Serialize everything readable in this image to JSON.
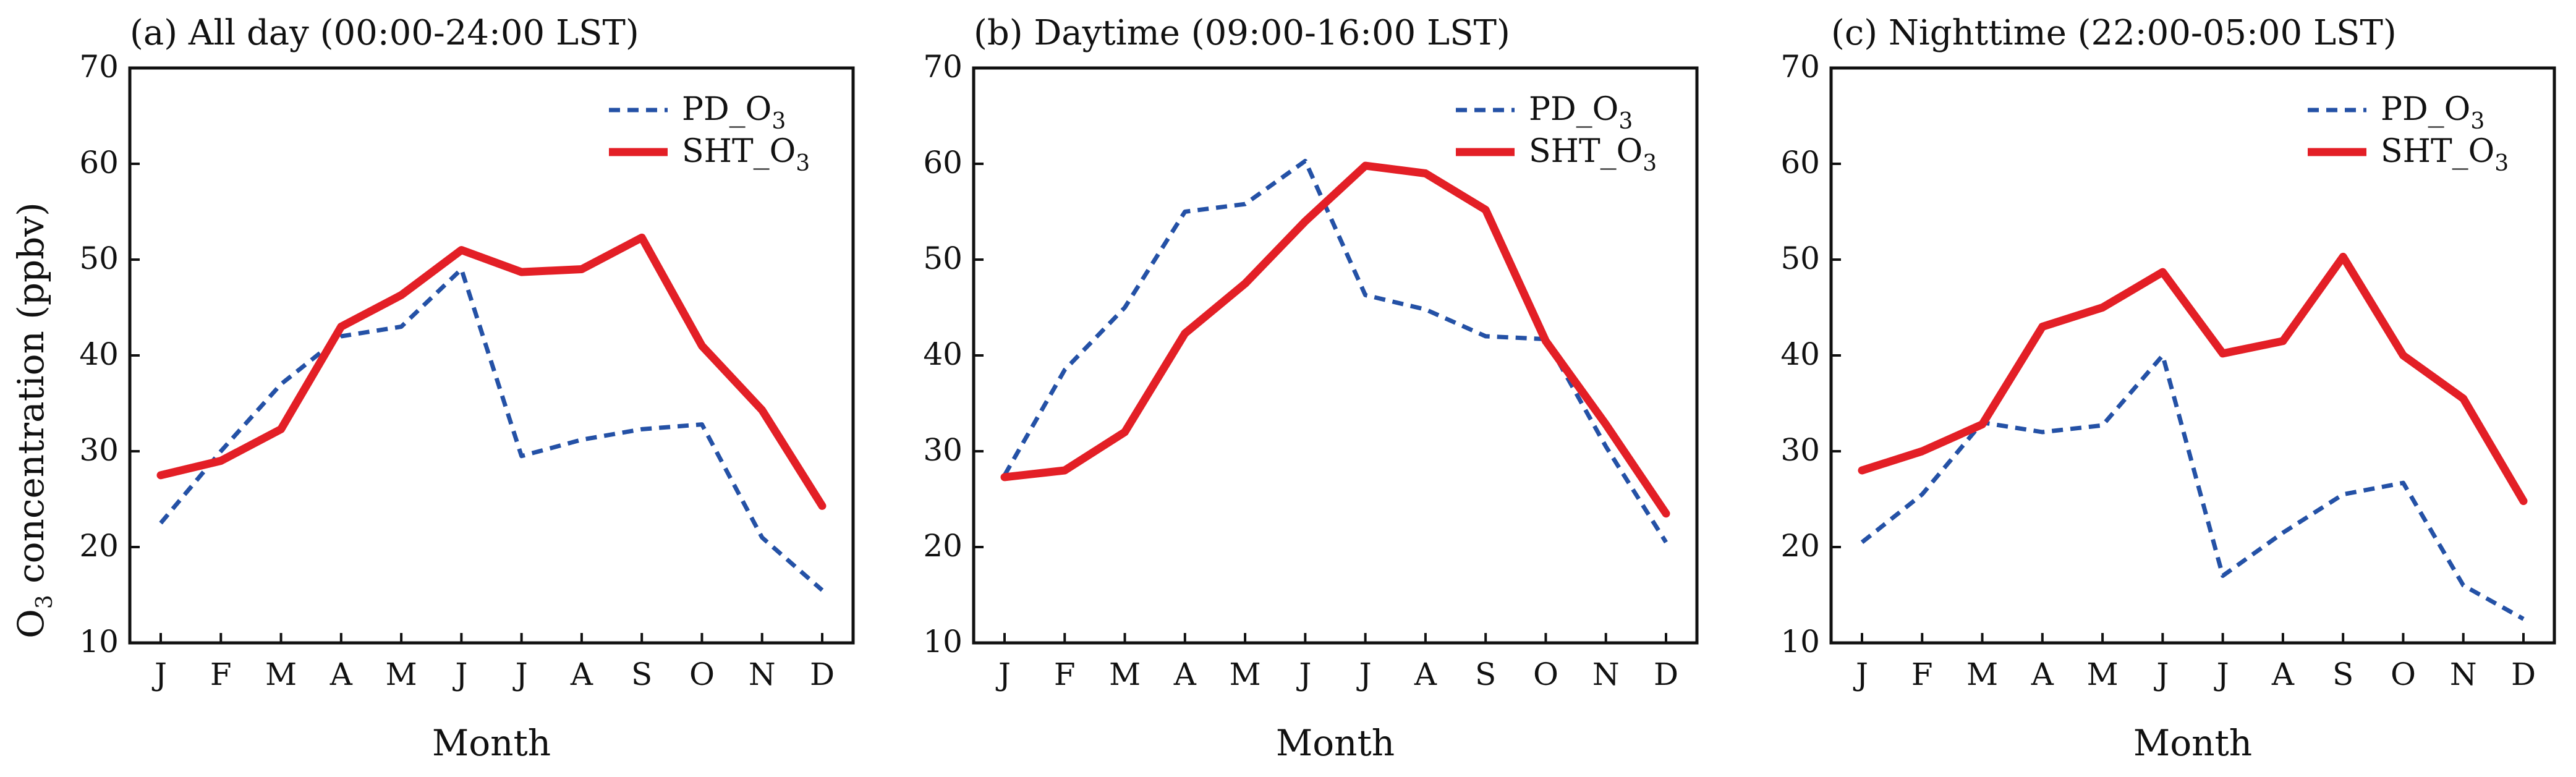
{
  "chart_data": [
    {
      "type": "line",
      "title": "(a) All day (00:00-24:00 LST)",
      "xlabel": "Month",
      "ylabel": "O3 concentration (ppbv)",
      "ylabel_main": "O",
      "ylabel_sub": "3",
      "ylabel_rest": " concentration (ppbv)",
      "categories": [
        "J",
        "F",
        "M",
        "A",
        "M",
        "J",
        "J",
        "A",
        "S",
        "O",
        "N",
        "D"
      ],
      "ylim": [
        10,
        70
      ],
      "yticks": [
        "10",
        "20",
        "30",
        "40",
        "50",
        "60",
        "70"
      ],
      "legend_position": "top-right",
      "series": [
        {
          "name": "PD_O3",
          "legend_main": "PD_O",
          "legend_sub": "3",
          "style": "dashed",
          "color": "#2451a6",
          "values": [
            22.5,
            30.0,
            37.0,
            42.0,
            43.0,
            49.0,
            29.5,
            31.2,
            32.3,
            32.8,
            21.0,
            15.5
          ]
        },
        {
          "name": "SHT_O3",
          "legend_main": "SHT_O",
          "legend_sub": "3",
          "style": "solid",
          "color": "#e31f26",
          "values": [
            27.5,
            29.0,
            32.3,
            43.0,
            46.3,
            51.0,
            48.7,
            49.0,
            52.3,
            41.0,
            34.3,
            24.3
          ]
        }
      ]
    },
    {
      "type": "line",
      "title": "(b) Daytime (09:00-16:00 LST)",
      "xlabel": "Month",
      "categories": [
        "J",
        "F",
        "M",
        "A",
        "M",
        "J",
        "J",
        "A",
        "S",
        "O",
        "N",
        "D"
      ],
      "ylim": [
        10,
        70
      ],
      "yticks": [
        "10",
        "20",
        "30",
        "40",
        "50",
        "60",
        "70"
      ],
      "legend_position": "top-right",
      "series": [
        {
          "name": "PD_O3",
          "legend_main": "PD_O",
          "legend_sub": "3",
          "style": "dashed",
          "color": "#2451a6",
          "values": [
            27.5,
            38.5,
            45.0,
            55.0,
            55.8,
            60.3,
            46.3,
            44.8,
            42.0,
            41.7,
            30.5,
            20.5
          ]
        },
        {
          "name": "SHT_O3",
          "legend_main": "SHT_O",
          "legend_sub": "3",
          "style": "solid",
          "color": "#e31f26",
          "values": [
            27.3,
            28.0,
            32.0,
            42.3,
            47.5,
            54.0,
            59.8,
            59.0,
            55.2,
            41.5,
            32.8,
            23.5
          ]
        }
      ]
    },
    {
      "type": "line",
      "title": "(c) Nighttime (22:00-05:00 LST)",
      "xlabel": "Month",
      "categories": [
        "J",
        "F",
        "M",
        "A",
        "M",
        "J",
        "J",
        "A",
        "S",
        "O",
        "N",
        "D"
      ],
      "ylim": [
        10,
        70
      ],
      "yticks": [
        "10",
        "20",
        "30",
        "40",
        "50",
        "60",
        "70"
      ],
      "legend_position": "top-right",
      "series": [
        {
          "name": "PD_O3",
          "legend_main": "PD_O",
          "legend_sub": "3",
          "style": "dashed",
          "color": "#2451a6",
          "values": [
            20.5,
            25.5,
            33.0,
            32.0,
            32.7,
            40.0,
            17.0,
            21.5,
            25.5,
            26.7,
            16.0,
            12.5
          ]
        },
        {
          "name": "SHT_O3",
          "legend_main": "SHT_O",
          "legend_sub": "3",
          "style": "solid",
          "color": "#e31f26",
          "values": [
            28.0,
            30.0,
            32.8,
            43.0,
            45.0,
            48.7,
            40.2,
            41.5,
            50.3,
            40.0,
            35.5,
            24.8
          ]
        }
      ]
    }
  ]
}
